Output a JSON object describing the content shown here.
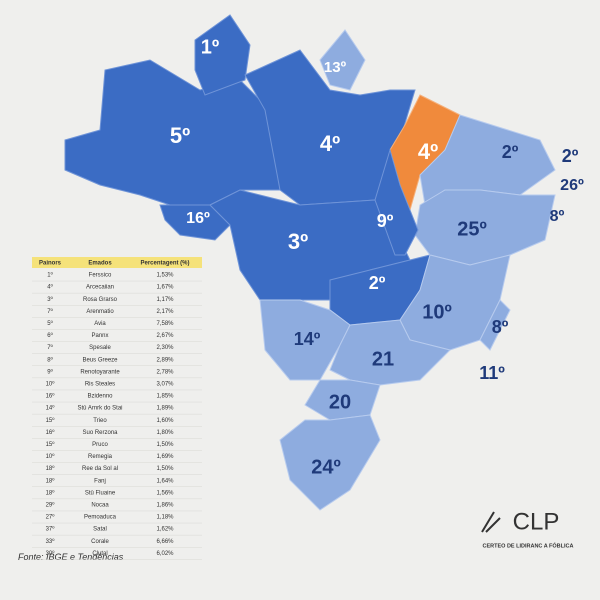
{
  "map": {
    "labels": [
      "1º",
      "13º",
      "5º",
      "4º",
      "4º",
      "2º",
      "2º",
      "26º",
      "8º",
      "16º",
      "3º",
      "9º",
      "25º",
      "2º",
      "10º",
      "8º",
      "14º",
      "21",
      "11º",
      "20",
      "24º"
    ]
  },
  "table": {
    "header": [
      "Painors",
      "Emados",
      "Percentagent (%)"
    ],
    "rows": [
      [
        "1º",
        "Ferssico",
        "1,53%"
      ],
      [
        "4º",
        "Arcecaiian",
        "1,67%"
      ],
      [
        "3º",
        "Rosa Grarso",
        "1,17%"
      ],
      [
        "7º",
        "Arenmatio",
        "2,17%"
      ],
      [
        "5º",
        "Avia",
        "7,58%"
      ],
      [
        "6º",
        "Pannx",
        "2,67%"
      ],
      [
        "7º",
        "Spesale",
        "2,30%"
      ],
      [
        "8º",
        "Beus Greeze",
        "2,89%"
      ],
      [
        "9º",
        "Renotoyarante",
        "2,78%"
      ],
      [
        "10º",
        "Ris Steales",
        "3,07%"
      ],
      [
        "16º",
        "Bzidenno",
        "1,85%"
      ],
      [
        "14º",
        "Stū Arnrk do Stai",
        "1,89%"
      ],
      [
        "15º",
        "Trieo",
        "1,60%"
      ],
      [
        "16º",
        "Suo Rerzona",
        "1,80%"
      ],
      [
        "15º",
        "Pruco",
        "1,50%"
      ],
      [
        "10º",
        "Remegia",
        "1,69%"
      ],
      [
        "18º",
        "Ree da Sol al",
        "1,50%"
      ],
      [
        "18º",
        "Fanj",
        "1,64%"
      ],
      [
        "18º",
        "Stū Fluaine",
        "1,56%"
      ],
      [
        "29º",
        "Nocaa",
        "1,86%"
      ],
      [
        "27º",
        "Pemoaduca",
        "1,18%"
      ],
      [
        "37º",
        "Satal",
        "1,62%"
      ],
      [
        "33º",
        "Corale",
        "6,66%"
      ],
      [
        "30º",
        "Clutal",
        "6,02%"
      ]
    ]
  },
  "source": "Fonte: IBGE e Tendências",
  "logo": {
    "name": "CLP",
    "tagline": "CERTEO DE LIDIRANC A FÓBLICA"
  }
}
